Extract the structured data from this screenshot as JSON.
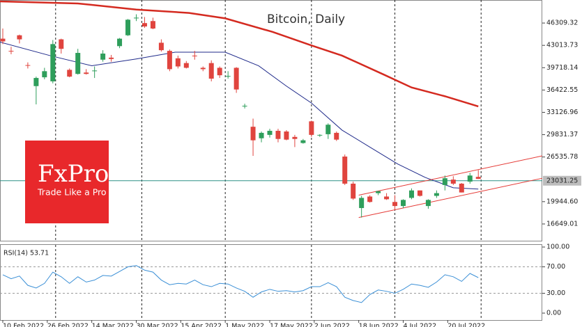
{
  "chart_data": {
    "type": "candlestick",
    "title": "Bitcoin, Daily",
    "x": [
      3,
      6,
      9,
      12,
      15,
      18,
      21,
      24,
      27,
      30,
      33,
      36,
      39,
      42,
      45,
      48,
      51,
      54,
      57,
      60,
      63,
      66,
      69,
      72,
      75,
      78,
      81,
      84,
      87,
      90,
      93,
      96,
      99,
      102,
      105,
      108,
      111,
      114,
      117,
      120,
      123,
      126,
      129,
      132,
      135,
      138,
      141,
      144,
      147,
      150,
      153,
      156,
      159,
      162,
      165,
      168,
      171,
      174
    ],
    "open": [
      44000,
      42200,
      44500,
      40100,
      37000,
      38300,
      37700,
      43900,
      39400,
      38800,
      39000,
      39300,
      40900,
      41200,
      42900,
      44500,
      47100,
      46300,
      46600,
      43400,
      42200,
      41100,
      40400,
      41500,
      39700,
      40400,
      39700,
      38500,
      39700,
      34000,
      31000,
      29300,
      29800,
      30400,
      30300,
      29500,
      28600,
      31800,
      29700,
      29900,
      30100,
      26600,
      22600,
      19000,
      20700,
      21200,
      20700,
      19900,
      19300,
      20500,
      21600,
      19300,
      20800,
      22400,
      23200,
      22600,
      22900,
      23600
    ],
    "high": [
      45500,
      42800,
      44600,
      40500,
      38400,
      39700,
      43800,
      44000,
      39600,
      42500,
      39500,
      39900,
      42300,
      41600,
      44100,
      46900,
      47600,
      47200,
      47100,
      43900,
      42400,
      41500,
      40700,
      42200,
      39900,
      40800,
      39900,
      39200,
      39800,
      34400,
      32200,
      30300,
      30700,
      30700,
      30500,
      29800,
      29200,
      31900,
      29900,
      31500,
      30300,
      26900,
      22900,
      20800,
      20900,
      21500,
      21200,
      20900,
      20300,
      21900,
      21600,
      20300,
      21600,
      23800,
      23700,
      22700,
      24200,
      24600
    ],
    "low": [
      43200,
      41700,
      43300,
      39600,
      34300,
      38000,
      37400,
      41800,
      38300,
      38700,
      38700,
      38200,
      40600,
      40600,
      42600,
      44400,
      46600,
      45600,
      45400,
      42100,
      39200,
      39600,
      39600,
      40900,
      39200,
      37700,
      38200,
      38100,
      36000,
      33700,
      26700,
      28700,
      29400,
      28700,
      29000,
      28000,
      28500,
      29500,
      29500,
      29200,
      28900,
      22400,
      20200,
      17600,
      19800,
      20900,
      20200,
      18800,
      19000,
      20300,
      20700,
      18900,
      20500,
      21600,
      22400,
      21300,
      22600,
      23300
    ],
    "close": [
      43600,
      42100,
      43900,
      40000,
      38200,
      39200,
      43200,
      42500,
      38400,
      41900,
      38800,
      39300,
      41800,
      41000,
      44000,
      46800,
      47100,
      45800,
      45500,
      42300,
      39500,
      39900,
      39700,
      41400,
      39500,
      38100,
      38600,
      38500,
      36500,
      34100,
      29000,
      30100,
      30400,
      29200,
      29100,
      29200,
      29000,
      29800,
      29800,
      31300,
      29100,
      22600,
      20400,
      20500,
      19900,
      21500,
      20300,
      19300,
      20200,
      21600,
      20800,
      20200,
      21200,
      23400,
      22600,
      21300,
      23800,
      23300
    ],
    "up_color": "#2e9e5b",
    "down_color": "#e0443e",
    "xlim": [
      2,
      197
    ],
    "ylim": [
      14177,
      49708
    ],
    "yticks": [
      46309.32,
      43013.73,
      39718.14,
      36422.55,
      33126.96,
      29831.37,
      26535.78,
      {
        "value": 19944.6,
        "label": "19944.60"
      },
      16649.01
    ],
    "xticks": [
      {
        "value": 3,
        "label": "10 Feb 2022"
      },
      {
        "value": 19,
        "label": "26 Feb 2022"
      },
      {
        "value": 35,
        "label": "14 Mar 2022"
      },
      {
        "value": 51,
        "label": "30 Mar 2022"
      },
      {
        "value": 67,
        "label": "15 Apr 2022"
      },
      {
        "value": 83,
        "label": "1 May 2022"
      },
      {
        "value": 99,
        "label": "17 May 2022"
      },
      {
        "value": 115,
        "label": "2 Jun 2022"
      },
      {
        "value": 131,
        "label": "18 Jun 2022"
      },
      {
        "value": 147,
        "label": "4 Jul 2022"
      },
      {
        "value": 163,
        "label": "20 Jul 2022"
      }
    ],
    "period_separators": [
      22,
      53,
      83,
      114,
      144,
      175
    ],
    "moving_averages": [
      {
        "color": "#d42a20",
        "x": [
          2,
          30,
          51,
          70,
          83,
          100,
          114,
          125,
          140,
          150,
          162,
          174
        ],
        "values": [
          49500,
          49200,
          48300,
          47800,
          47000,
          45000,
          43000,
          41500,
          38700,
          36800,
          35500,
          34000
        ]
      },
      {
        "color": "#1f2a8a",
        "x": [
          2,
          20,
          35,
          51,
          65,
          83,
          95,
          105,
          114,
          125,
          135,
          145,
          155,
          165,
          174
        ],
        "values": [
          43500,
          41500,
          40000,
          41000,
          42000,
          42000,
          40000,
          37000,
          34500,
          30500,
          28000,
          25500,
          23500,
          22000,
          21800
        ]
      }
    ],
    "channel": {
      "color": "#e53935",
      "lines": [
        {
          "x": [
            131,
            197
          ],
          "values": [
            17600,
            23400
          ]
        },
        {
          "x": [
            131,
            197
          ],
          "values": [
            20900,
            26700
          ]
        }
      ]
    },
    "current_price": 23031.25,
    "logo": {
      "brand": "FxPro",
      "tagline": "Trade Like a Pro"
    },
    "rsi": {
      "label": "RSI(14) 53.71",
      "color": "#3a8fd6",
      "values": [
        58,
        52,
        56,
        42,
        38,
        45,
        62,
        55,
        45,
        55,
        47,
        50,
        57,
        56,
        63,
        70,
        72,
        65,
        62,
        50,
        43,
        45,
        44,
        50,
        43,
        40,
        45,
        44,
        38,
        33,
        24,
        32,
        36,
        33,
        34,
        32,
        34,
        40,
        40,
        46,
        40,
        24,
        19,
        16,
        28,
        35,
        33,
        30,
        36,
        44,
        42,
        39,
        47,
        58,
        55,
        48,
        60,
        53.71
      ],
      "ylim": [
        -10.5,
        103.2
      ],
      "yticks": [
        {
          "value": 100,
          "label": "100.00"
        },
        {
          "value": 70,
          "label": "70.00"
        },
        {
          "value": 30,
          "label": "30.00"
        },
        {
          "value": 0,
          "label": "0.00"
        }
      ],
      "levels": [
        70,
        30
      ]
    }
  }
}
